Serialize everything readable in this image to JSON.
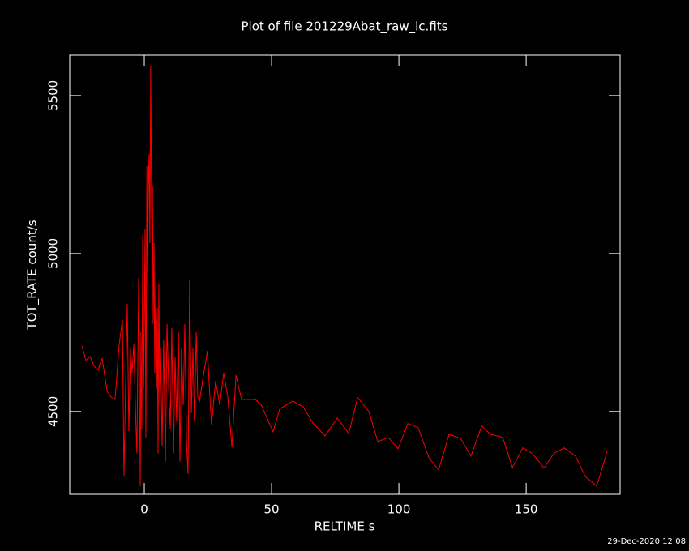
{
  "chart_data": {
    "type": "line",
    "title": "Plot of file 201229Abat_raw_lc.fits",
    "x_label": "RELTIME  s",
    "y_label": "TOT_RATE  count/s",
    "timestamp": "29-Dec-2020 12:08",
    "xlim": [
      -29.3,
      186.9
    ],
    "ylim": [
      4238,
      5628
    ],
    "xticks": [
      0,
      50,
      100,
      150
    ],
    "yticks": [
      4500,
      5000,
      5500
    ],
    "x": [
      -24.5,
      -22.9,
      -21.3,
      -19.7,
      -18.2,
      -16.6,
      -14.6,
      -13.1,
      -11.5,
      -9.9,
      -8.6,
      -8.0,
      -7.3,
      -6.7,
      -6.1,
      -5.4,
      -4.8,
      -4.1,
      -3.5,
      -2.9,
      -2.2,
      -1.6,
      -1.3,
      -1.0,
      -0.6,
      -0.3,
      0,
      0.3,
      0.6,
      1.0,
      1.3,
      1.6,
      1.9,
      2.2,
      2.5,
      2.9,
      3.2,
      3.5,
      3.8,
      4.1,
      4.5,
      4.8,
      5.1,
      5.4,
      5.7,
      6.1,
      6.4,
      7.0,
      7.6,
      8.3,
      8.9,
      9.6,
      10.2,
      10.8,
      11.5,
      12.1,
      12.7,
      13.4,
      14.0,
      14.6,
      15.3,
      15.9,
      16.6,
      17.2,
      17.8,
      18.5,
      19.1,
      19.7,
      20.4,
      21.0,
      21.7,
      22.9,
      24.8,
      26.4,
      28.0,
      29.6,
      31.2,
      32.8,
      34.4,
      36.0,
      38.2,
      43.6,
      45.9,
      50.6,
      53.2,
      58.3,
      62.4,
      66.2,
      71.0,
      75.8,
      80.3,
      83.8,
      88.2,
      91.7,
      95.9,
      99.7,
      103.5,
      107.6,
      111.8,
      115.6,
      119.7,
      124.2,
      128.3,
      132.5,
      136.0,
      140.8,
      144.6,
      148.7,
      152.5,
      157.0,
      160.8,
      165.0,
      169.4,
      173.2,
      177.7,
      181.8
    ],
    "series": [
      {
        "name": "TOT_RATE",
        "color": "#ff0000",
        "values": [
          4708,
          4662,
          4674,
          4644,
          4631,
          4669,
          4564,
          4546,
          4538,
          4710,
          4790,
          4295,
          4597,
          4841,
          4438,
          4700,
          4623,
          4713,
          4521,
          4367,
          4923,
          4264,
          4751,
          4444,
          5059,
          4572,
          4777,
          5077,
          4418,
          5277,
          4905,
          5213,
          5315,
          5033,
          5592,
          5110,
          5213,
          4777,
          5033,
          4623,
          4931,
          4572,
          4828,
          4367,
          4905,
          4521,
          4700,
          4392,
          4726,
          4341,
          4777,
          4572,
          4444,
          4764,
          4367,
          4674,
          4469,
          4751,
          4341,
          4700,
          4521,
          4777,
          4392,
          4303,
          4918,
          4495,
          4700,
          4469,
          4751,
          4546,
          4533,
          4597,
          4692,
          4456,
          4597,
          4521,
          4623,
          4546,
          4387,
          4615,
          4538,
          4538,
          4521,
          4436,
          4508,
          4533,
          4515,
          4464,
          4423,
          4479,
          4431,
          4544,
          4500,
          4405,
          4418,
          4382,
          4462,
          4449,
          4354,
          4315,
          4428,
          4415,
          4359,
          4454,
          4428,
          4418,
          4323,
          4385,
          4367,
          4321,
          4367,
          4385,
          4359,
          4295,
          4264,
          4374
        ]
      }
    ]
  }
}
